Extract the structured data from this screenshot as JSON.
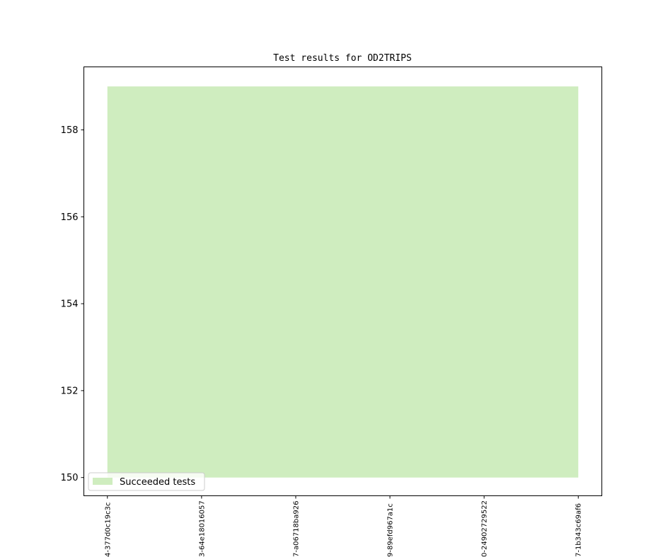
{
  "chart_data": {
    "type": "area",
    "title": "Test results for OD2TRIPS",
    "xlabel": "",
    "ylabel": "",
    "categories": [
      "4-377d0c19c3c",
      "3-64e18016057",
      "7-a06718ba926",
      "9-89efd967a1c",
      "0-24902729522",
      "7-1b343c69af6"
    ],
    "series": [
      {
        "name": "Succeeded tests",
        "baseline": 150,
        "values": [
          159,
          159,
          159,
          159,
          159,
          159
        ],
        "color": "#cfedbf"
      }
    ],
    "yticks": [
      150,
      152,
      154,
      156,
      158
    ],
    "ylim": [
      149.58,
      159.45
    ],
    "xlim": [
      -0.25,
      5.25
    ],
    "grid": false,
    "legend": "lower-left"
  }
}
